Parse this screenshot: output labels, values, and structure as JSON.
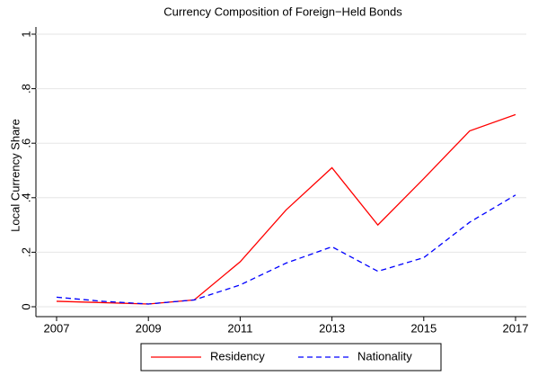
{
  "chart_data": {
    "type": "line",
    "title": "Currency Composition of Foreign−Held Bonds",
    "y_label": "Local Currency Share",
    "x": [
      2007,
      2008,
      2009,
      2010,
      2011,
      2012,
      2013,
      2014,
      2015,
      2016,
      2017
    ],
    "series": [
      {
        "name": "Residency",
        "color": "#ff0000",
        "dash": "solid",
        "values": [
          0.02,
          0.015,
          0.01,
          0.025,
          0.165,
          0.355,
          0.51,
          0.3,
          0.47,
          0.645,
          0.705
        ]
      },
      {
        "name": "Nationality",
        "color": "#0000ff",
        "dash": "dashed",
        "values": [
          0.035,
          0.02,
          0.01,
          0.025,
          0.08,
          0.16,
          0.22,
          0.13,
          0.18,
          0.31,
          0.41
        ]
      }
    ],
    "xlim": [
      2007,
      2017
    ],
    "xticks": [
      2007,
      2009,
      2011,
      2013,
      2015,
      2017
    ],
    "ylim": [
      0,
      1
    ],
    "yticks": [
      0,
      {
        "value": 0.2,
        "label": ".2"
      },
      {
        "value": 0.4,
        "label": ".4"
      },
      {
        "value": 0.6,
        "label": ".6"
      },
      {
        "value": 0.8,
        "label": ".8"
      },
      1
    ],
    "grid": true,
    "legend": "bottom"
  }
}
